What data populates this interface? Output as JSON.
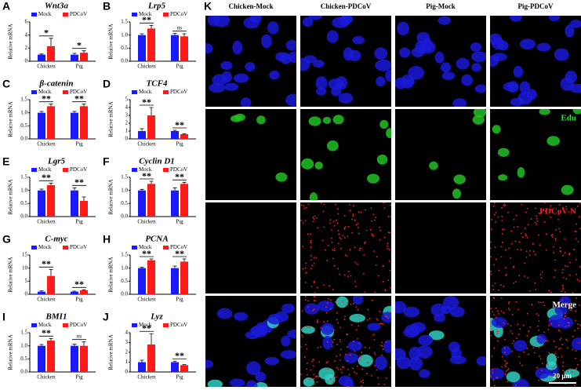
{
  "chart_data": [
    {
      "type": "bar",
      "panel": "A",
      "title": "Wnt3a",
      "ylabel": "Relative mRNA",
      "categories": [
        "Chicken",
        "Pig"
      ],
      "series": [
        {
          "name": "Mock",
          "color": "#1a1aff",
          "values": [
            1,
            1
          ],
          "errors": [
            0.1,
            0.2
          ]
        },
        {
          "name": "PDCoV",
          "color": "#ff1a1a",
          "values": [
            2.3,
            1.3
          ],
          "errors": [
            1.2,
            0.3
          ]
        }
      ],
      "annotations": [
        "*",
        "*"
      ],
      "ylim": [
        0,
        6
      ],
      "yticks": [
        0,
        2,
        4,
        6
      ]
    },
    {
      "type": "bar",
      "panel": "B",
      "title": "Lrp5",
      "ylabel": "Relative mRNA",
      "categories": [
        "Chicken",
        "Pig"
      ],
      "series": [
        {
          "name": "Mock",
          "color": "#1a1aff",
          "values": [
            1,
            1
          ],
          "errors": [
            0.05,
            0.06
          ]
        },
        {
          "name": "PDCoV",
          "color": "#ff1a1a",
          "values": [
            1.25,
            0.95
          ],
          "errors": [
            0.12,
            0.1
          ]
        }
      ],
      "annotations": [
        "**",
        "ns"
      ],
      "ylim": [
        0,
        1.5
      ],
      "yticks": [
        {
          "value": 0,
          "label": "0.0"
        },
        0.5,
        {
          "value": 1,
          "label": "1.0"
        },
        1.5
      ]
    },
    {
      "type": "bar",
      "panel": "C",
      "title": "β-catenin",
      "ylabel": "Relative mRNA",
      "categories": [
        "Chicken",
        "Pig"
      ],
      "series": [
        {
          "name": "Mock",
          "color": "#1a1aff",
          "values": [
            1,
            1
          ],
          "errors": [
            0.05,
            0.05
          ]
        },
        {
          "name": "PDCoV",
          "color": "#ff1a1a",
          "values": [
            1.25,
            1.25
          ],
          "errors": [
            0.08,
            0.08
          ]
        }
      ],
      "annotations": [
        "**",
        "**"
      ],
      "ylim": [
        0,
        1.5
      ],
      "yticks": [
        {
          "value": 0,
          "label": "0.0"
        },
        0.5,
        {
          "value": 1,
          "label": "1.0"
        },
        1.5
      ]
    },
    {
      "type": "bar",
      "panel": "D",
      "title": "TCF4",
      "ylabel": "Relative mRNA",
      "categories": [
        "Chicken",
        "Pig"
      ],
      "series": [
        {
          "name": "Mock",
          "color": "#1a1aff",
          "values": [
            1,
            1
          ],
          "errors": [
            0.3,
            0.1
          ]
        },
        {
          "name": "PDCoV",
          "color": "#ff1a1a",
          "values": [
            3,
            0.6
          ],
          "errors": [
            1,
            0.05
          ]
        }
      ],
      "annotations": [
        "**",
        "**"
      ],
      "ylim": [
        0,
        5
      ],
      "yticks": [
        0,
        1,
        2,
        3,
        4,
        5
      ]
    },
    {
      "type": "bar",
      "panel": "E",
      "title": "Lgr5",
      "ylabel": "Relative mRNA",
      "categories": [
        "Chicken",
        "Pig"
      ],
      "series": [
        {
          "name": "Mock",
          "color": "#1a1aff",
          "values": [
            1,
            1
          ],
          "errors": [
            0.05,
            0.1
          ]
        },
        {
          "name": "PDCoV",
          "color": "#ff1a1a",
          "values": [
            1.2,
            0.6
          ],
          "errors": [
            0.08,
            0.15
          ]
        }
      ],
      "annotations": [
        "**",
        "**"
      ],
      "ylim": [
        0,
        1.5
      ],
      "yticks": [
        {
          "value": 0,
          "label": "0.0"
        },
        0.5,
        {
          "value": 1,
          "label": "1.0"
        },
        1.5
      ]
    },
    {
      "type": "bar",
      "panel": "F",
      "title": "Cyclin D1",
      "ylabel": "Relative mRNA",
      "categories": [
        "Chicken",
        "Pig"
      ],
      "series": [
        {
          "name": "Mock",
          "color": "#1a1aff",
          "values": [
            1,
            1
          ],
          "errors": [
            0.04,
            0.1
          ]
        },
        {
          "name": "PDCoV",
          "color": "#ff1a1a",
          "values": [
            1.25,
            1.25
          ],
          "errors": [
            0.1,
            0.06
          ]
        }
      ],
      "annotations": [
        "**",
        "**"
      ],
      "ylim": [
        0,
        1.5
      ],
      "yticks": [
        {
          "value": 0,
          "label": "0.0"
        },
        0.5,
        {
          "value": 1,
          "label": "1.0"
        },
        1.5
      ]
    },
    {
      "type": "bar",
      "panel": "G",
      "title": "C-myc",
      "ylabel": "Relative mRNA",
      "categories": [
        "Chicken",
        "Pig"
      ],
      "series": [
        {
          "name": "Mock",
          "color": "#1a1aff",
          "values": [
            1,
            1
          ],
          "errors": [
            0.3,
            0.2
          ]
        },
        {
          "name": "PDCoV",
          "color": "#ff1a1a",
          "values": [
            7,
            1.5
          ],
          "errors": [
            2.5,
            0.2
          ]
        }
      ],
      "annotations": [
        "**",
        "**"
      ],
      "ylim": [
        0,
        15
      ],
      "yticks": [
        0,
        5,
        10,
        15
      ]
    },
    {
      "type": "bar",
      "panel": "H",
      "title": "PCNA",
      "ylabel": "Relative mRNA",
      "categories": [
        "Chicken",
        "Pig"
      ],
      "series": [
        {
          "name": "Mock",
          "color": "#1a1aff",
          "values": [
            1,
            1
          ],
          "errors": [
            0.03,
            0.08
          ]
        },
        {
          "name": "PDCoV",
          "color": "#ff1a1a",
          "values": [
            1.3,
            1.25
          ],
          "errors": [
            0.05,
            0.1
          ]
        }
      ],
      "annotations": [
        "**",
        "**"
      ],
      "ylim": [
        0,
        1.5
      ],
      "yticks": [
        {
          "value": 0,
          "label": "0.0"
        },
        0.5,
        {
          "value": 1,
          "label": "1.0"
        },
        1.5
      ]
    },
    {
      "type": "bar",
      "panel": "I",
      "title": "BMI1",
      "ylabel": "Relative mRNA",
      "categories": [
        "Chicken",
        "Pig"
      ],
      "series": [
        {
          "name": "Mock",
          "color": "#1a1aff",
          "values": [
            1,
            1
          ],
          "errors": [
            0.05,
            0.06
          ]
        },
        {
          "name": "PDCoV",
          "color": "#ff1a1a",
          "values": [
            1.2,
            1
          ],
          "errors": [
            0.08,
            0.15
          ]
        }
      ],
      "annotations": [
        "**",
        "ns"
      ],
      "ylim": [
        0,
        1.5
      ],
      "yticks": [
        {
          "value": 0,
          "label": "0.0"
        },
        0.5,
        {
          "value": 1,
          "label": "1.0"
        },
        1.5
      ]
    },
    {
      "type": "bar",
      "panel": "J",
      "title": "Lyz",
      "ylabel": "Relative mRNA",
      "categories": [
        "Chicken",
        "Pig"
      ],
      "series": [
        {
          "name": "Mock",
          "color": "#1a1aff",
          "values": [
            1,
            1
          ],
          "errors": [
            0.2,
            0.1
          ]
        },
        {
          "name": "PDCoV",
          "color": "#ff1a1a",
          "values": [
            2.8,
            0.7
          ],
          "errors": [
            1.1,
            0.05
          ]
        }
      ],
      "annotations": [
        "**",
        "**"
      ],
      "ylim": [
        0,
        4
      ],
      "yticks": [
        0,
        1,
        2,
        3,
        4
      ]
    }
  ],
  "panel_k": {
    "label": "K",
    "columns": [
      "Chicken-Mock",
      "Chicken-PDCoV",
      "Pig-Mock",
      "Pig-PDCoV"
    ],
    "row_labels": [
      "Edu",
      "PDCoV-N",
      "Merge"
    ],
    "scale_bar": "20 μm"
  }
}
